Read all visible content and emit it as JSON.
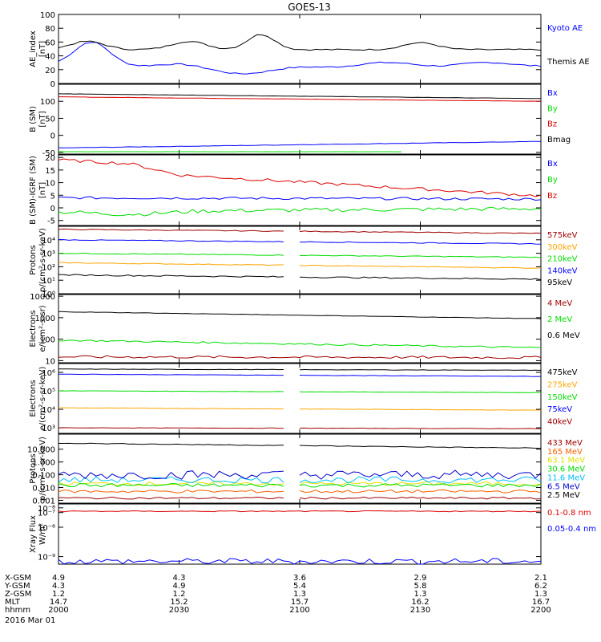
{
  "title": "GOES-13",
  "date": "2016 Mar 01",
  "time_axis": {
    "row_labels": [
      "X-GSM",
      "Y-GSM",
      "Z-GSM",
      "MLT",
      "hhmm"
    ],
    "columns": [
      {
        "values": [
          "4.9",
          "4.3",
          "1.2",
          "14.7",
          "2000"
        ]
      },
      {
        "values": [
          "4.3",
          "4.9",
          "1.2",
          "15.2",
          "2030"
        ]
      },
      {
        "values": [
          "3.6",
          "5.4",
          "1.3",
          "15.7",
          "2100"
        ]
      },
      {
        "values": [
          "2.9",
          "5.8",
          "1.3",
          "16.2",
          "2130"
        ]
      },
      {
        "values": [
          "2.1",
          "6.2",
          "1.3",
          "16.7",
          "2200"
        ]
      }
    ]
  },
  "chart_data": [
    {
      "type": "line",
      "ylabel": [
        "AE_index",
        "[nT]"
      ],
      "yscale": "linear",
      "ylim": [
        0,
        100
      ],
      "yticks": [
        0,
        20,
        40,
        60,
        80,
        100
      ],
      "ytick_labels": [
        "0",
        "20",
        "40",
        "60",
        "80",
        "100"
      ],
      "series": [
        {
          "name": "Kyoto AE",
          "color": "#0000ff",
          "shape": "kyoto"
        },
        {
          "name": "Themis AE",
          "color": "#000000",
          "shape": "themis"
        }
      ]
    },
    {
      "type": "line",
      "ylabel": [
        "B (SM)",
        "[nT]"
      ],
      "yscale": "linear",
      "ylim": [
        -55,
        150
      ],
      "yticks": [
        -50,
        0,
        50,
        100
      ],
      "ytick_labels": [
        "-50",
        "0",
        "50",
        "100"
      ],
      "series": [
        {
          "name": "Bx",
          "color": "#0000ff",
          "start": -37,
          "end": -18,
          "noise": 0.6
        },
        {
          "name": "By",
          "color": "#00dd00",
          "start": -48,
          "end": -48,
          "noise": 0.2,
          "end_frac": 0.72
        },
        {
          "name": "Bz",
          "color": "#dd0000",
          "start": 113,
          "end": 100,
          "noise": 0.4
        },
        {
          "name": "Bmag",
          "color": "#000000",
          "start": 122,
          "end": 108,
          "noise": 0.4
        }
      ]
    },
    {
      "type": "line",
      "ylabel": [
        "B (SM)-IGRF (SM)",
        "[nT]"
      ],
      "yscale": "linear",
      "ylim": [
        -7,
        21
      ],
      "yticks": [
        -5,
        0,
        5,
        10,
        15,
        20
      ],
      "ytick_labels": [
        "-5",
        "0",
        "5",
        "10",
        "15",
        "20"
      ],
      "series": [
        {
          "name": "Bx",
          "color": "#0000ff",
          "start": 4,
          "end": 3.5,
          "noise": 0.5
        },
        {
          "name": "By",
          "color": "#00dd00",
          "start": -1,
          "end": -1,
          "noise": 0.4,
          "shape": "by3"
        },
        {
          "name": "Bz",
          "color": "#dd0000",
          "start": 19,
          "end": 3,
          "noise": 0.3,
          "shape": "bz3"
        }
      ]
    },
    {
      "type": "line",
      "ylabel": [
        "Protons",
        "p/(cm²-s-sr-keV)"
      ],
      "yscale": "log",
      "ylim": [
        1,
        100000
      ],
      "yticks": [
        1,
        10,
        100,
        1000,
        10000
      ],
      "ytick_labels": [
        "10⁰",
        "10¹",
        "10²",
        "10³",
        "10⁴"
      ],
      "gap": [
        0.475,
        0.5
      ],
      "series": [
        {
          "name": "575keV",
          "color": "#a00000",
          "start": 60000,
          "end": 30000,
          "noise": 0.03
        },
        {
          "name": "300keV",
          "color": "#ffa500",
          "start": 200,
          "end": 80,
          "noise": 0.03
        },
        {
          "name": "210keV",
          "color": "#00dd00",
          "start": 1000,
          "end": 500,
          "noise": 0.03
        },
        {
          "name": "140keV",
          "color": "#0000ff",
          "start": 10000,
          "end": 5000,
          "noise": 0.03
        },
        {
          "name": "95keV",
          "color": "#000000",
          "start": 25,
          "end": 12,
          "noise": 0.05
        }
      ]
    },
    {
      "type": "line",
      "ylabel": [
        "Electrons",
        "e/(cm²-s-sr)"
      ],
      "yscale": "log",
      "ylim": [
        8,
        12000
      ],
      "yticks": [
        10,
        100,
        1000,
        10000
      ],
      "ytick_labels": [
        "10",
        "100",
        "1000",
        "10000"
      ],
      "series": [
        {
          "name": "4 MeV",
          "color": "#a00000",
          "start": 15,
          "end": 14,
          "noise": 0.06
        },
        {
          "name": "2 MeV",
          "color": "#00dd00",
          "start": 90,
          "end": 40,
          "noise": 0.04
        },
        {
          "name": "0.6 MeV",
          "color": "#000000",
          "start": 1900,
          "end": 900,
          "noise": 0.01
        }
      ]
    },
    {
      "type": "line",
      "ylabel": [
        "Electrons",
        "e/(cm²-s-sr-keV)"
      ],
      "yscale": "log",
      "ylim": [
        500,
        3000000
      ],
      "yticks": [
        1000,
        10000,
        100000,
        1000000
      ],
      "ytick_labels": [
        "10³",
        "10⁴",
        "10⁵",
        "10⁶"
      ],
      "gap": [
        0.475,
        0.5
      ],
      "series": [
        {
          "name": "475keV",
          "color": "#000000",
          "start": 1500000,
          "end": 1300000,
          "noise": 0.01
        },
        {
          "name": "275keV",
          "color": "#ffa500",
          "start": 12000,
          "end": 9000,
          "noise": 0.01
        },
        {
          "name": "150keV",
          "color": "#00dd00",
          "start": 100000,
          "end": 80000,
          "noise": 0.01
        },
        {
          "name": "75keV",
          "color": "#0000ff",
          "start": 800000,
          "end": 600000,
          "noise": 0.01
        },
        {
          "name": "40keV",
          "color": "#a00000",
          "start": 1000,
          "end": 900,
          "noise": 0.01
        }
      ]
    },
    {
      "type": "line",
      "ylabel": [
        "Protons",
        "p/(cm²-s-sr-keV)"
      ],
      "yscale": "log",
      "ylim": [
        0.0006,
        150
      ],
      "yticks": [
        0.001,
        0.01,
        0.1,
        1,
        10
      ],
      "ytick_labels": [
        "0.001",
        "0.010",
        "0.100",
        "1.000",
        "10.000"
      ],
      "gap": [
        0.475,
        0.5
      ],
      "series": [
        {
          "name": "433 MeV",
          "color": "#a00000",
          "start": 0.0015,
          "end": 0.0015,
          "noise": 0.08
        },
        {
          "name": "165 MeV",
          "color": "#ff6000",
          "start": 0.005,
          "end": 0.005,
          "noise": 0.12
        },
        {
          "name": "63.1 MeV",
          "color": "#e0e000",
          "start": 0.02,
          "end": 0.02,
          "noise": 0.15
        },
        {
          "name": "30.6 MeV",
          "color": "#00dd00",
          "start": 0.015,
          "end": 0.015,
          "noise": 0.15
        },
        {
          "name": "11.6 MeV",
          "color": "#00c0ff",
          "start": 0.04,
          "end": 0.04,
          "noise": 0.25
        },
        {
          "name": "6.5 MeV",
          "color": "#0000cc",
          "start": 0.1,
          "end": 0.1,
          "noise": 0.35
        },
        {
          "name": "2.5 MeV",
          "color": "#000000",
          "start": 30,
          "end": 12,
          "noise": 0.03
        }
      ]
    },
    {
      "type": "line",
      "ylabel": [
        "Xray Flux",
        "W/m²"
      ],
      "yscale": "log",
      "ylim": [
        7e-10,
        1.2e-08
      ],
      "yticks": [
        1e-09,
        1e-08
      ],
      "ytick_labels": [
        "10⁻⁹",
        "10⁻⁸"
      ],
      "extra_ticks": [
        {
          "v": 4e-09,
          "label": "10⁻⁶"
        },
        {
          "v": 8e-09,
          "label": "10⁻⁷"
        }
      ],
      "series": [
        {
          "name": "0.1-0.8 nm",
          "color": "#dd0000",
          "start": 8.5e-09,
          "end": 8.5e-09,
          "noise": 0.01
        },
        {
          "name": "0.05-0.4 nm",
          "color": "#0000ff",
          "start": 8e-10,
          "end": 8e-10,
          "noise": 0.06
        }
      ]
    }
  ]
}
